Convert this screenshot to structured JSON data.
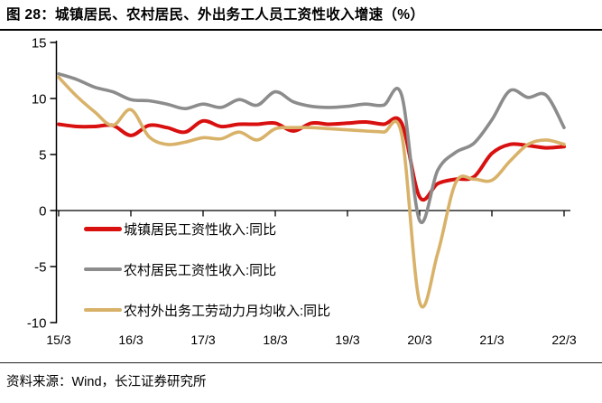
{
  "header": {
    "title": "图 28：城镇居民、农村居民、外出务工人员工资性收入增速（%）"
  },
  "footer": {
    "source": "资料来源：Wind，长江证券研究所"
  },
  "chart_data": {
    "type": "line",
    "title": "城镇居民、农村居民、外出务工人员工资性收入增速（%）",
    "xlabel": "",
    "ylabel": "",
    "ylim": [
      -10,
      15
    ],
    "y_ticks": [
      15,
      10,
      5,
      0,
      -5,
      -10
    ],
    "y_tick_labels": [
      "15",
      "10",
      "5",
      "0",
      "-5",
      "-10"
    ],
    "x_tick_labels": [
      "15/3",
      "16/3",
      "17/3",
      "18/3",
      "19/3",
      "20/3",
      "21/3",
      "22/3"
    ],
    "grid": false,
    "legend_position": "inside-bottom-left",
    "smoothed": true,
    "axis_color": "#000000",
    "categories": [
      "15/3",
      "15/6",
      "15/9",
      "15/12",
      "16/3",
      "16/6",
      "16/9",
      "16/12",
      "17/3",
      "17/6",
      "17/9",
      "17/12",
      "18/3",
      "18/6",
      "18/9",
      "18/12",
      "19/3",
      "19/6",
      "19/9",
      "19/12",
      "20/3",
      "20/6",
      "20/9",
      "20/12",
      "21/3",
      "21/6",
      "21/9",
      "21/12",
      "22/3"
    ],
    "series": [
      {
        "name": "城镇居民工资性收入:同比",
        "color": "#D8100F",
        "stroke_width": 4,
        "values": [
          7.7,
          7.5,
          7.5,
          7.6,
          6.7,
          7.6,
          7.4,
          7.0,
          8.0,
          7.5,
          7.7,
          7.7,
          7.8,
          7.1,
          7.8,
          7.7,
          7.8,
          7.9,
          7.7,
          7.8,
          1.2,
          2.4,
          2.8,
          3.0,
          5.1,
          5.9,
          5.8,
          5.6,
          5.7
        ]
      },
      {
        "name": "农村居民工资性收入:同比",
        "color": "#8C8C8C",
        "stroke_width": 3.6,
        "values": [
          12.2,
          11.7,
          11.0,
          10.6,
          9.9,
          9.8,
          9.5,
          9.1,
          9.5,
          9.2,
          9.9,
          9.4,
          10.6,
          9.7,
          9.3,
          9.2,
          9.3,
          9.5,
          9.4,
          10.3,
          -0.9,
          3.6,
          5.2,
          6.0,
          8.1,
          10.7,
          10.1,
          10.3,
          7.4
        ]
      },
      {
        "name": "农村外出务工劳动力月均收入:同比",
        "color": "#D9B26A",
        "stroke_width": 3.6,
        "values": [
          11.9,
          10.2,
          8.8,
          7.6,
          9.0,
          6.6,
          5.9,
          6.1,
          6.5,
          6.4,
          7.0,
          6.3,
          7.3,
          7.4,
          7.4,
          7.3,
          7.2,
          7.1,
          7.0,
          6.8,
          -8.2,
          -3.8,
          2.5,
          2.8,
          2.7,
          4.4,
          5.9,
          6.3,
          5.9
        ]
      }
    ]
  }
}
